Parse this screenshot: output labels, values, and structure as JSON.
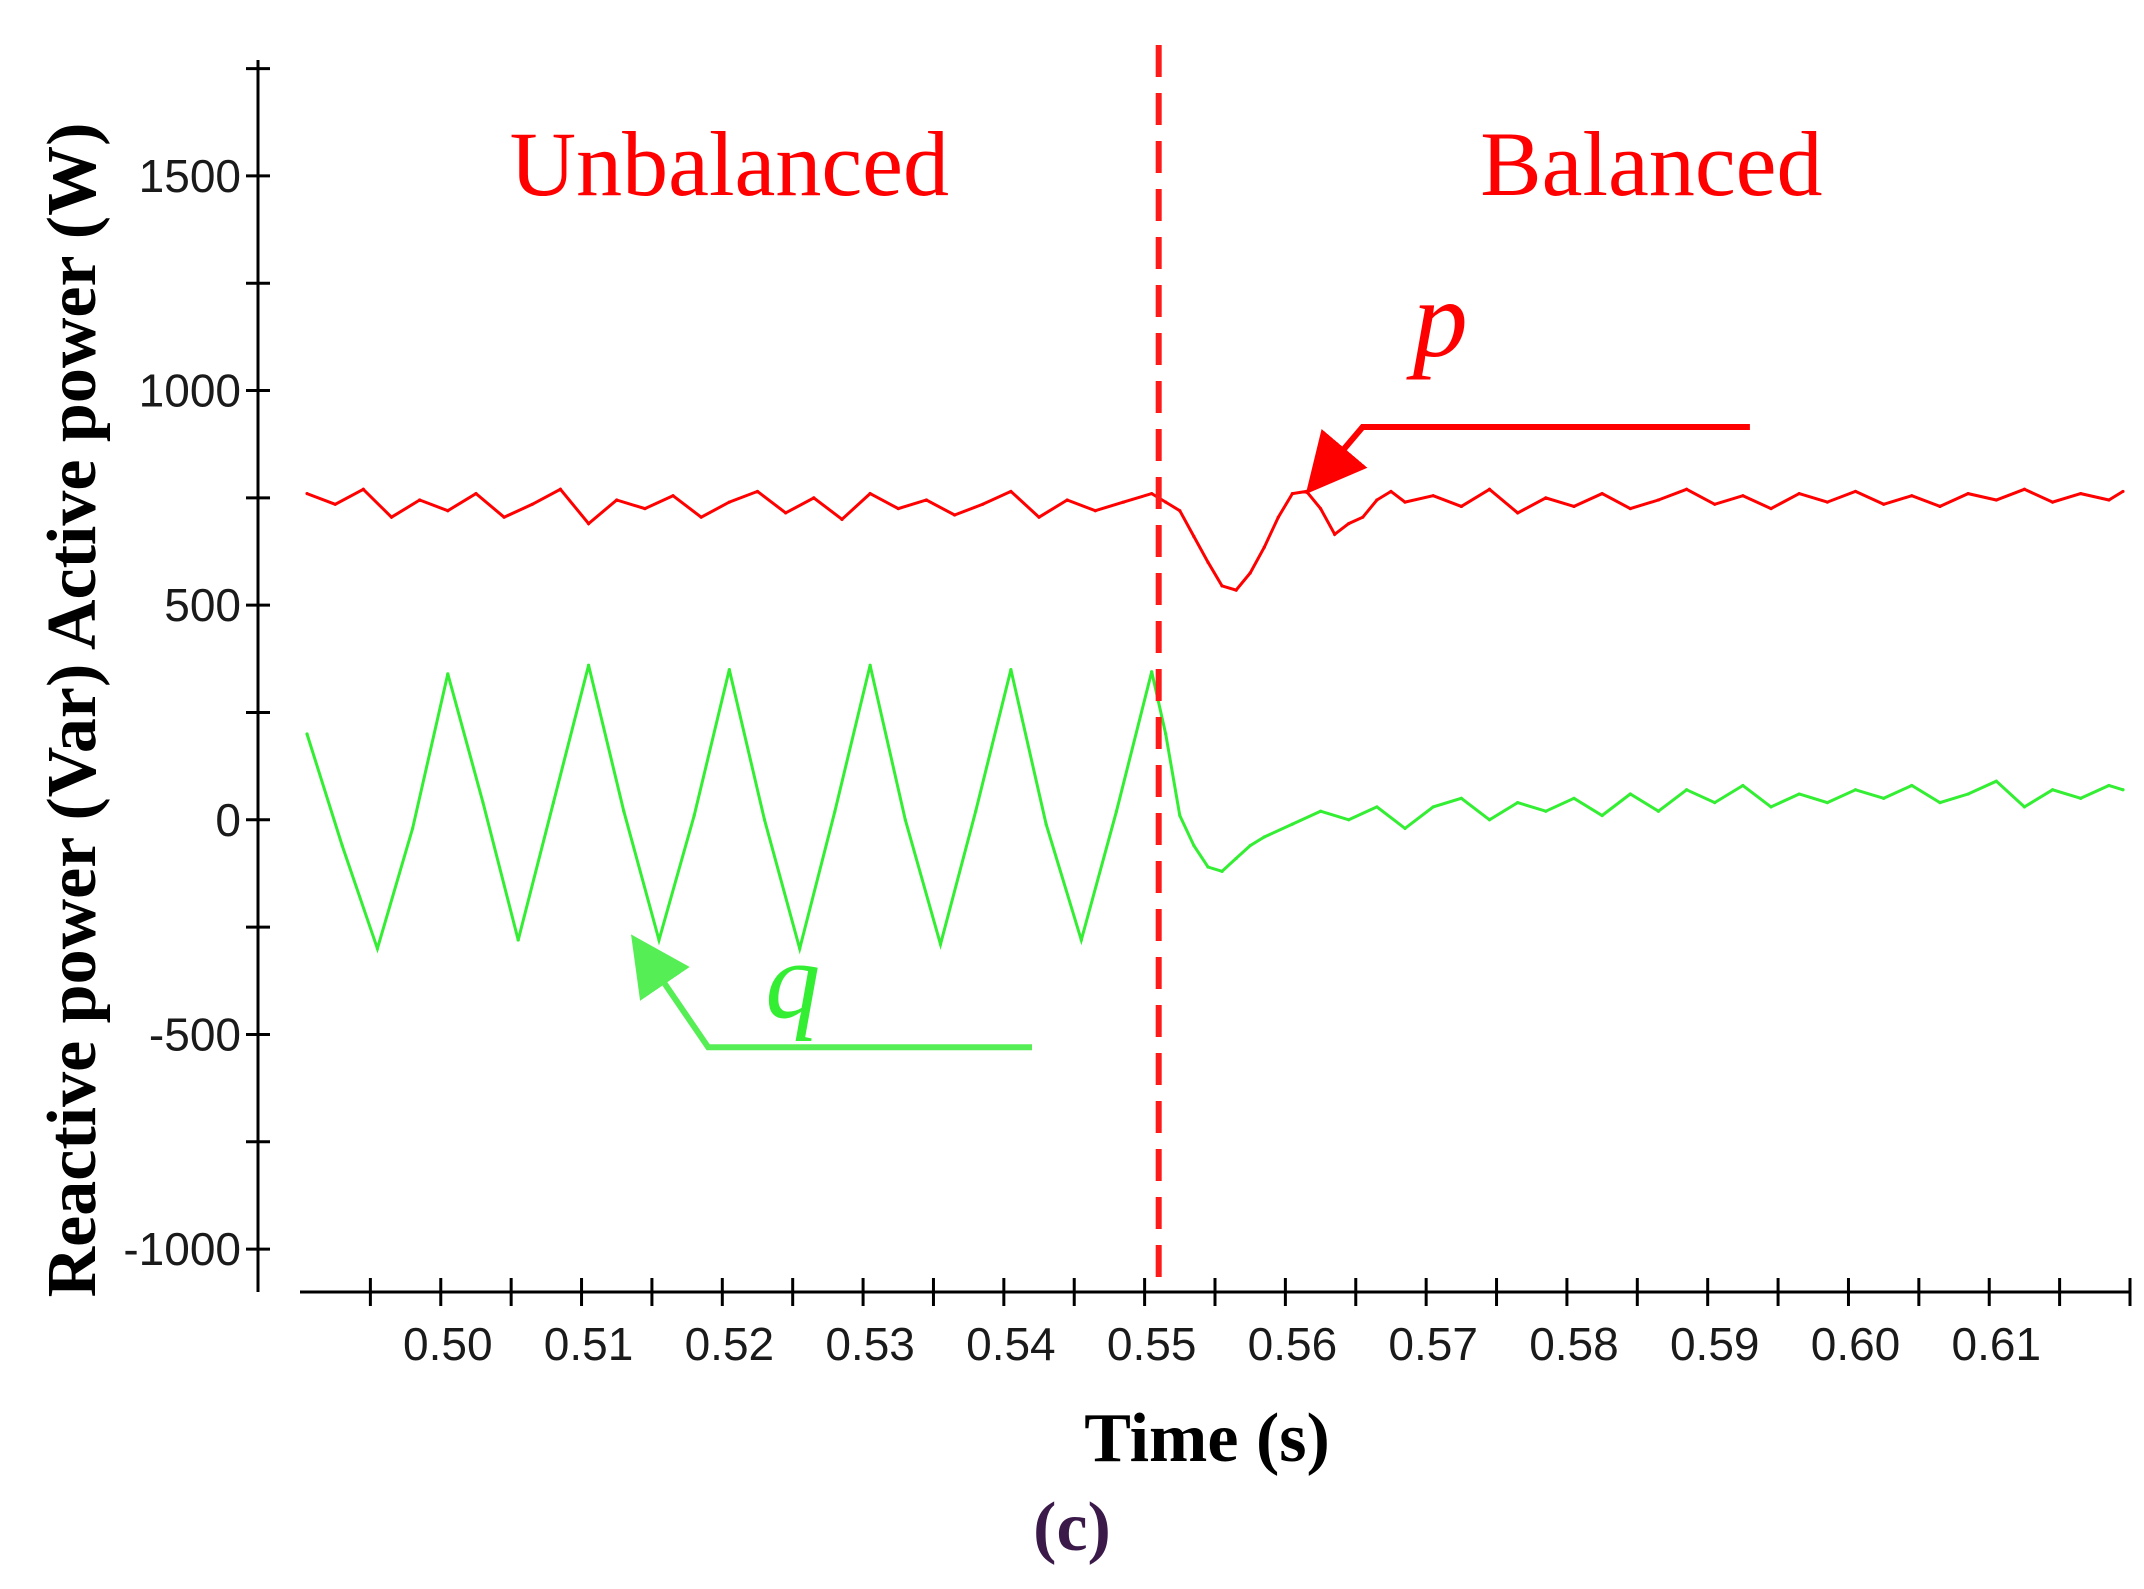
{
  "chart_data": {
    "type": "line",
    "title": "",
    "caption": "(c)",
    "xlabel": "Time (s)",
    "ylabel": "Reactive power (Var) Active power (W)",
    "xlim": [
      0.4895,
      0.6195
    ],
    "ylim": [
      -1100,
      1770
    ],
    "x_ticks": [
      0.5,
      0.51,
      0.52,
      0.53,
      0.54,
      0.55,
      0.56,
      0.57,
      0.58,
      0.59,
      0.6,
      0.61
    ],
    "x_tick_labels": [
      "0.50",
      "0.51",
      "0.52",
      "0.53",
      "0.54",
      "0.55",
      "0.56",
      "0.57",
      "0.58",
      "0.59",
      "0.60",
      "0.61"
    ],
    "y_ticks": [
      1500,
      1000,
      500,
      0,
      -500,
      -1000
    ],
    "y_tick_labels": [
      "1500",
      "1000",
      "500",
      "0",
      "-500",
      "-1000"
    ],
    "y_minor_step": 250,
    "transition_time": 0.5505,
    "regions": [
      {
        "label": "Unbalanced",
        "x": 0.52
      },
      {
        "label": "Balanced",
        "x": 0.5855
      }
    ],
    "series": [
      {
        "name": "p",
        "color": "#ff0000",
        "x": [
          0.49,
          0.492,
          0.494,
          0.496,
          0.498,
          0.5,
          0.502,
          0.504,
          0.506,
          0.508,
          0.51,
          0.512,
          0.514,
          0.516,
          0.518,
          0.52,
          0.522,
          0.524,
          0.526,
          0.528,
          0.53,
          0.532,
          0.534,
          0.536,
          0.538,
          0.54,
          0.542,
          0.544,
          0.546,
          0.548,
          0.55,
          0.551,
          0.552,
          0.553,
          0.554,
          0.555,
          0.556,
          0.557,
          0.558,
          0.559,
          0.56,
          0.561,
          0.562,
          0.563,
          0.564,
          0.565,
          0.566,
          0.567,
          0.568,
          0.57,
          0.572,
          0.574,
          0.576,
          0.578,
          0.58,
          0.582,
          0.584,
          0.586,
          0.588,
          0.59,
          0.592,
          0.594,
          0.596,
          0.598,
          0.6,
          0.602,
          0.604,
          0.606,
          0.608,
          0.61,
          0.612,
          0.614,
          0.616,
          0.618,
          0.619
        ],
        "y": [
          760,
          735,
          770,
          705,
          745,
          720,
          760,
          705,
          735,
          770,
          690,
          745,
          725,
          755,
          705,
          740,
          765,
          715,
          750,
          700,
          760,
          725,
          745,
          710,
          735,
          765,
          705,
          745,
          720,
          740,
          760,
          740,
          720,
          660,
          600,
          545,
          535,
          575,
          635,
          705,
          760,
          765,
          725,
          665,
          690,
          705,
          745,
          765,
          740,
          755,
          730,
          770,
          715,
          750,
          730,
          760,
          725,
          745,
          770,
          735,
          755,
          725,
          760,
          740,
          765,
          735,
          755,
          730,
          760,
          745,
          770,
          740,
          760,
          745,
          765
        ]
      },
      {
        "name": "q",
        "color": "#33ee33",
        "x": [
          0.49,
          0.4925,
          0.495,
          0.4975,
          0.5,
          0.5025,
          0.505,
          0.5075,
          0.51,
          0.5125,
          0.515,
          0.5175,
          0.52,
          0.5225,
          0.525,
          0.5275,
          0.53,
          0.5325,
          0.535,
          0.5375,
          0.54,
          0.5425,
          0.545,
          0.5475,
          0.55,
          0.551,
          0.552,
          0.553,
          0.554,
          0.555,
          0.556,
          0.557,
          0.558,
          0.56,
          0.562,
          0.564,
          0.566,
          0.568,
          0.57,
          0.572,
          0.574,
          0.576,
          0.578,
          0.58,
          0.582,
          0.584,
          0.586,
          0.588,
          0.59,
          0.592,
          0.594,
          0.596,
          0.598,
          0.6,
          0.602,
          0.604,
          0.606,
          0.608,
          0.61,
          0.612,
          0.614,
          0.616,
          0.618,
          0.619
        ],
        "y": [
          200,
          -60,
          -300,
          -20,
          340,
          40,
          -280,
          40,
          360,
          20,
          -280,
          10,
          350,
          0,
          -300,
          20,
          360,
          0,
          -290,
          20,
          350,
          -10,
          -280,
          20,
          345,
          200,
          10,
          -60,
          -110,
          -120,
          -90,
          -60,
          -40,
          -10,
          20,
          0,
          30,
          -20,
          30,
          50,
          0,
          40,
          20,
          50,
          10,
          60,
          20,
          70,
          40,
          80,
          30,
          60,
          40,
          70,
          50,
          80,
          40,
          60,
          90,
          30,
          70,
          50,
          80,
          70
        ]
      }
    ],
    "annotations": [
      {
        "label": "p",
        "target_series": "p",
        "target_x": 0.5615,
        "target_y": 780,
        "text_x": 0.5705,
        "text_y": 1080
      },
      {
        "label": "q",
        "target_series": "q",
        "target_x": 0.5135,
        "target_y": -290,
        "text_x": 0.5245,
        "text_y": -460
      }
    ]
  }
}
